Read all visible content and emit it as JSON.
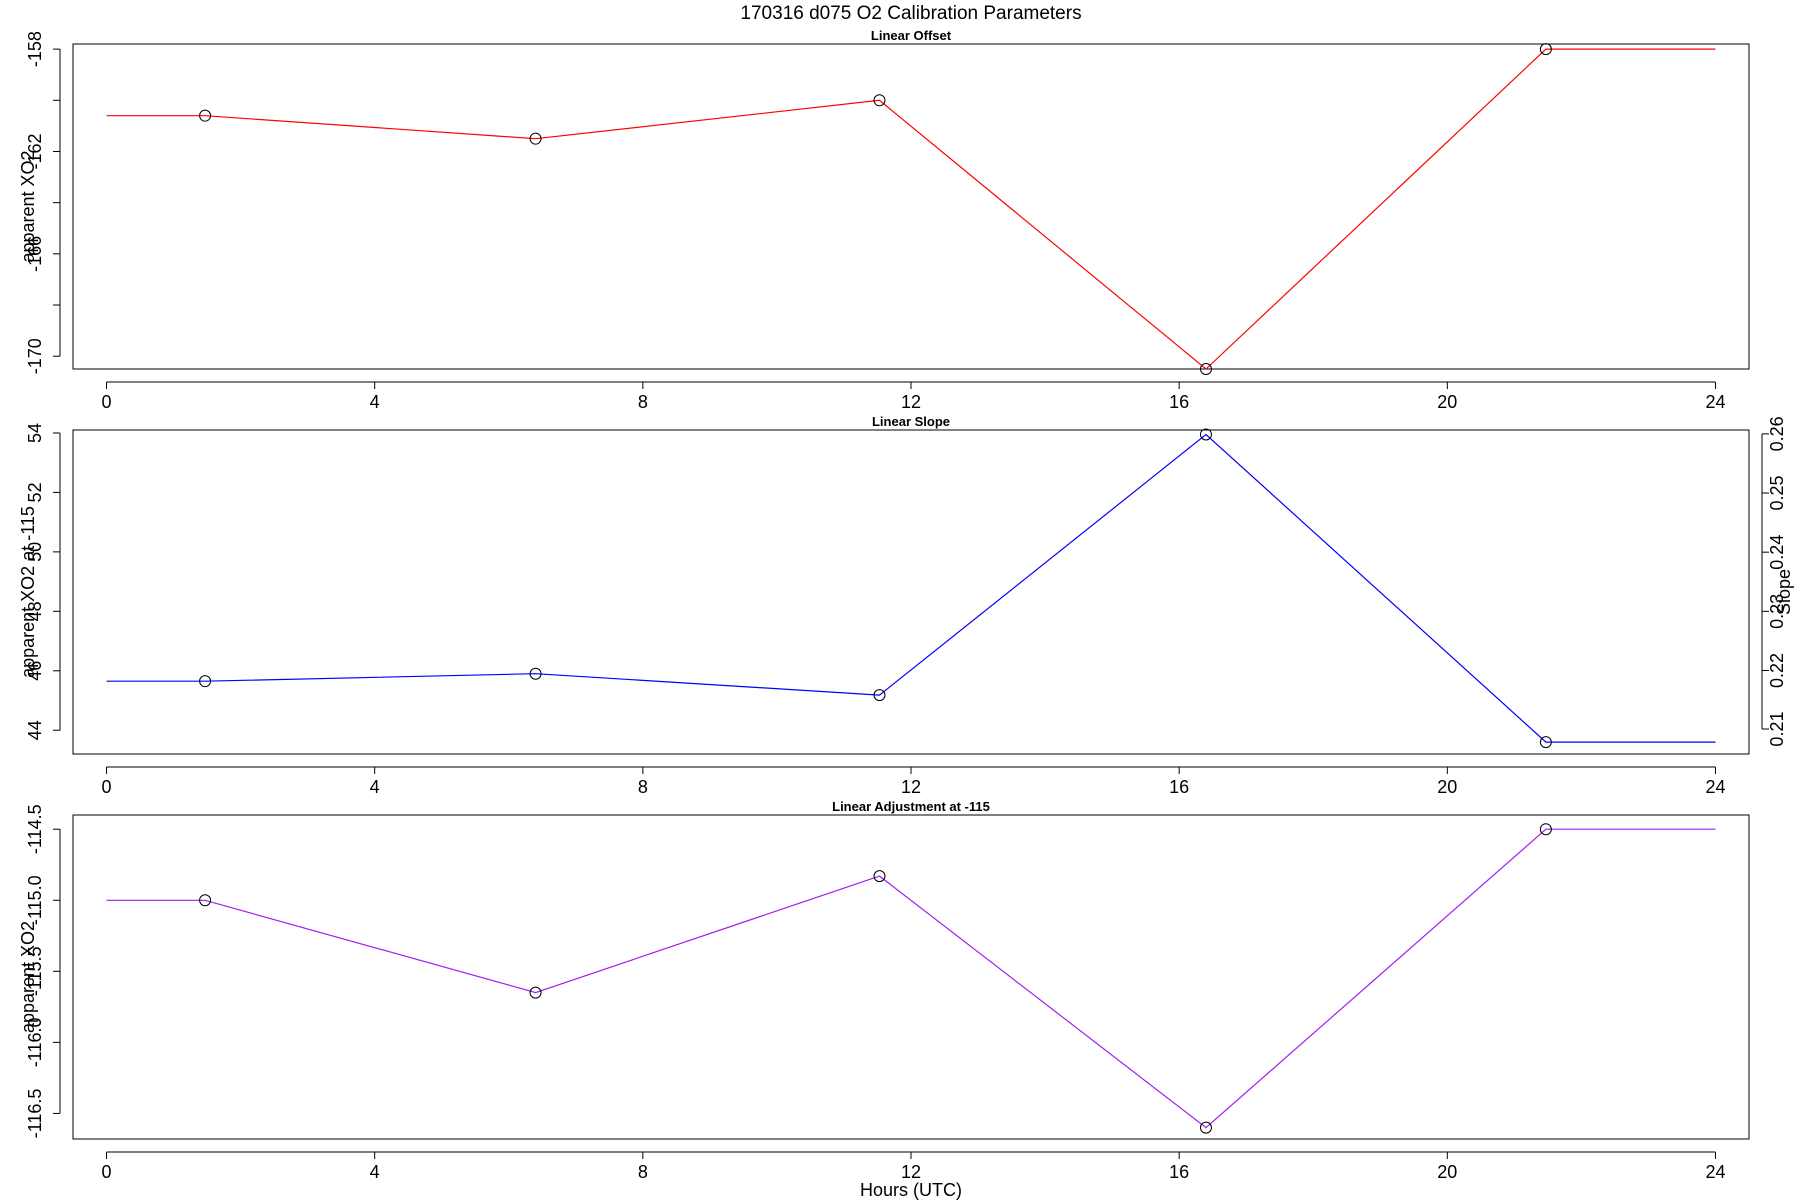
{
  "figure": {
    "title": "170316   d075   O2 Calibration Parameters",
    "xlabel": "Hours (UTC)"
  },
  "chart_data": [
    {
      "type": "line",
      "title": "Linear Offset",
      "ylabel": "apparent XO2",
      "color": "#ff0000",
      "xlim": [
        -0.5,
        24.5
      ],
      "ylim": [
        -170.5,
        -157.8
      ],
      "xticks": [
        0,
        4,
        8,
        12,
        16,
        20,
        24
      ],
      "yticks": [
        -158,
        -162,
        -166,
        -170
      ],
      "yticks_minor": [
        -160,
        -164,
        -168
      ],
      "x": [
        0,
        1.47,
        6.4,
        11.53,
        16.4,
        21.47,
        24
      ],
      "y": [
        -160.6,
        -160.6,
        -161.5,
        -160.0,
        -170.5,
        -158.0,
        -158.0
      ],
      "marker_indices": [
        1,
        2,
        3,
        4,
        5
      ]
    },
    {
      "type": "line",
      "title": "Linear Slope",
      "ylabel": "apparent XO2 at -115",
      "ylabel_right": "Slope",
      "color": "#0000ff",
      "xlim": [
        -0.5,
        24.5
      ],
      "ylim": [
        43.2,
        54.1
      ],
      "xticks": [
        0,
        4,
        8,
        12,
        16,
        20,
        24
      ],
      "yticks": [
        44,
        46,
        48,
        50,
        52,
        54
      ],
      "yticks_right": [
        0.21,
        0.22,
        0.23,
        0.24,
        0.25,
        0.26
      ],
      "yticks_right_at": [
        44.04,
        46.01,
        48.0,
        49.99,
        51.98,
        53.97
      ],
      "x": [
        0,
        1.47,
        6.4,
        11.53,
        16.4,
        21.47,
        24
      ],
      "y": [
        45.65,
        45.65,
        45.9,
        45.18,
        53.95,
        43.6,
        43.6
      ],
      "marker_indices": [
        1,
        2,
        3,
        4,
        5
      ]
    },
    {
      "type": "line",
      "title": "Linear Adjustment at -115",
      "ylabel": "apparent XO2",
      "color": "#a020f0",
      "xlim": [
        -0.5,
        24.5
      ],
      "ylim": [
        -116.68,
        -114.4
      ],
      "xticks": [
        0,
        4,
        8,
        12,
        16,
        20,
        24
      ],
      "yticks": [
        -114.5,
        -115.0,
        -115.5,
        -116.0,
        -116.5
      ],
      "ytick_labels": [
        "-114.5",
        "-115.0",
        "-115.5",
        "-116.0",
        "-116.5"
      ],
      "x": [
        0,
        1.47,
        6.4,
        11.53,
        16.4,
        21.47,
        24
      ],
      "y": [
        -115.0,
        -115.0,
        -115.65,
        -114.83,
        -116.6,
        -114.5,
        -114.5
      ],
      "marker_indices": [
        1,
        2,
        3,
        4,
        5
      ]
    }
  ]
}
